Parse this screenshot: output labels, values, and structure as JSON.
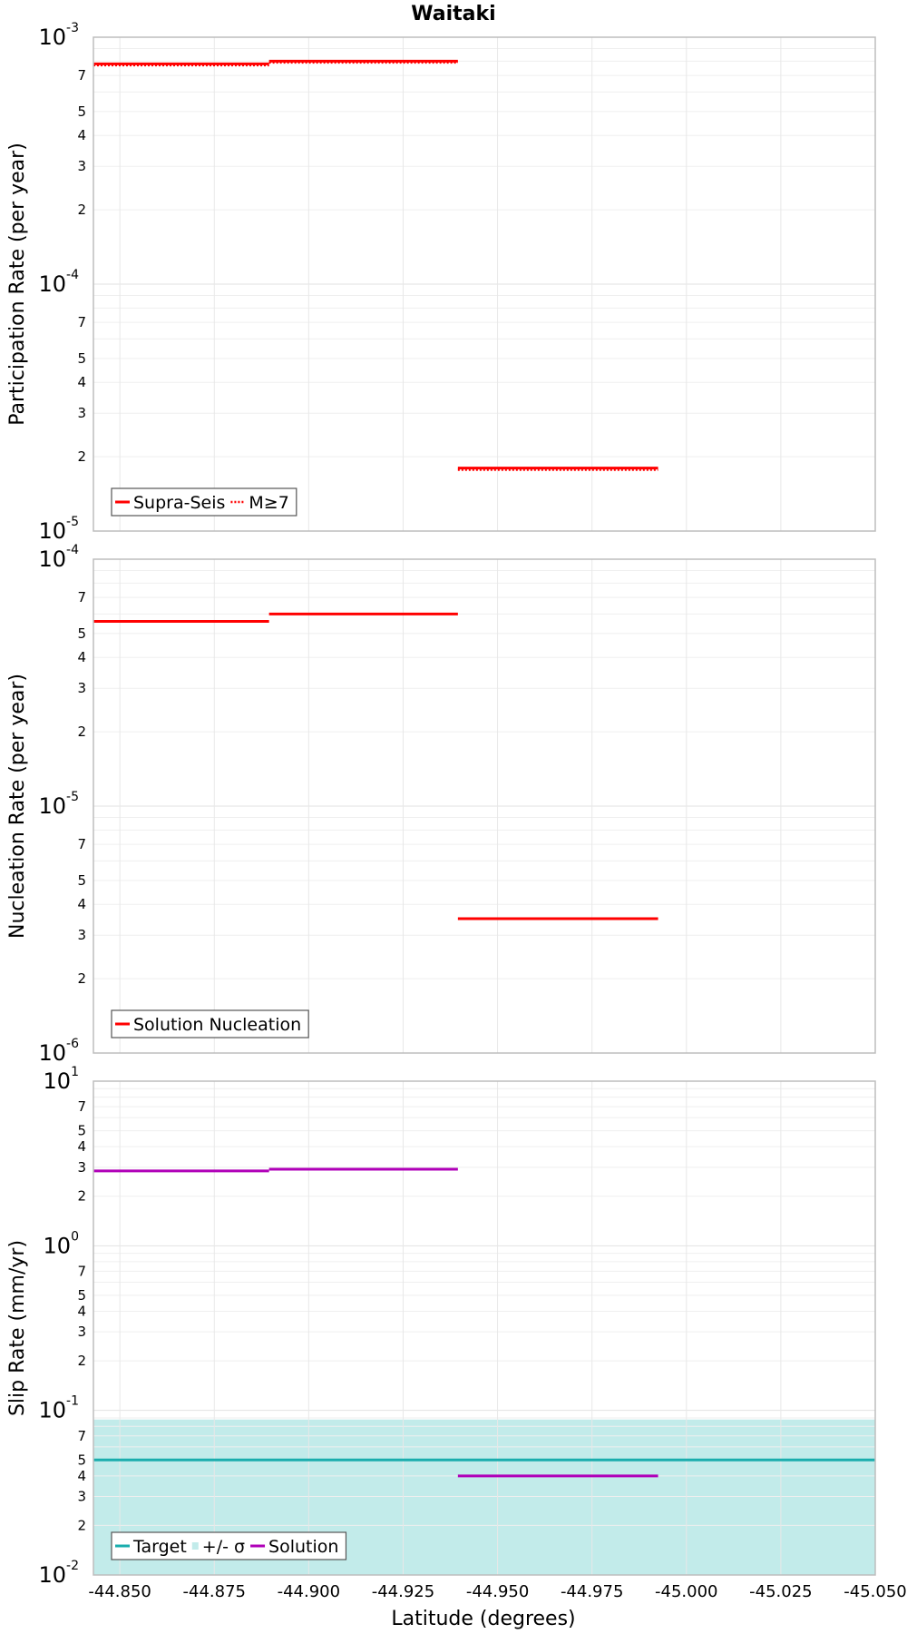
{
  "figure_title": "Waitaki",
  "x_axis": {
    "label": "Latitude (degrees)",
    "ticks": [
      -44.85,
      -44.875,
      -44.9,
      -44.925,
      -44.95,
      -44.975,
      -45.0,
      -45.025,
      -45.05
    ],
    "tick_labels": [
      "-44.850",
      "-44.875",
      "-44.900",
      "-44.925",
      "-44.950",
      "-44.975",
      "-45.000",
      "-45.025",
      "-45.050"
    ]
  },
  "chart_data": [
    {
      "type": "line",
      "ylabel": "Participation Rate (per year)",
      "xlim": [
        -44.843,
        -45.05
      ],
      "ylim": [
        1e-05,
        0.001
      ],
      "log_y": true,
      "grid": true,
      "legend_placement": "bottom-left",
      "y_major_labels": [
        {
          "base": "10",
          "exp": "-5"
        },
        {
          "base": "10",
          "exp": "-4"
        },
        {
          "base": "10",
          "exp": "-3"
        }
      ],
      "series": [
        {
          "name": "Supra-Seis",
          "color": "#ff0000",
          "style": "solid",
          "segments": [
            [
              -44.843,
              -44.8895,
              0.00078
            ],
            [
              -44.8895,
              -44.9395,
              0.0008
            ],
            [
              -44.9395,
              -44.9925,
              1.8e-05
            ]
          ]
        },
        {
          "name": "M≥7",
          "color": "#ff0000",
          "style": "dotted",
          "segments": [
            [
              -44.843,
              -44.8895,
              0.00077
            ],
            [
              -44.8895,
              -44.9395,
              0.00079
            ],
            [
              -44.9395,
              -44.9925,
              1.77e-05
            ]
          ]
        }
      ]
    },
    {
      "type": "line",
      "ylabel": "Nucleation Rate (per year)",
      "xlim": [
        -44.843,
        -45.05
      ],
      "ylim": [
        1e-06,
        0.0001
      ],
      "log_y": true,
      "grid": true,
      "legend_placement": "bottom-left",
      "y_major_labels": [
        {
          "base": "10",
          "exp": "-6"
        },
        {
          "base": "10",
          "exp": "-5"
        },
        {
          "base": "10",
          "exp": "-4"
        }
      ],
      "series": [
        {
          "name": "Solution Nucleation",
          "color": "#ff0000",
          "style": "solid",
          "segments": [
            [
              -44.843,
              -44.8895,
              5.6e-05
            ],
            [
              -44.8895,
              -44.9395,
              6e-05
            ],
            [
              -44.9395,
              -44.9925,
              3.5e-06
            ]
          ]
        }
      ]
    },
    {
      "type": "line",
      "ylabel": "Slip Rate (mm/yr)",
      "xlim": [
        -44.843,
        -45.05
      ],
      "ylim": [
        0.01,
        10
      ],
      "log_y": true,
      "grid": true,
      "legend_placement": "bottom-left",
      "y_major_labels": [
        {
          "base": "10",
          "exp": "-2"
        },
        {
          "base": "10",
          "exp": "-1"
        },
        {
          "base": "10",
          "exp": "0"
        },
        {
          "base": "10",
          "exp": "1"
        }
      ],
      "band": {
        "name": "+/- σ",
        "color": "#c2ebea",
        "low": 0.01,
        "high": 0.088
      },
      "series": [
        {
          "name": "Target",
          "color": "#1aadad",
          "style": "solid",
          "segments": [
            [
              -44.843,
              -45.05,
              0.05
            ]
          ]
        },
        {
          "name": "Solution",
          "color": "#b000b8",
          "style": "solid",
          "segments": [
            [
              -44.843,
              -44.8895,
              2.85
            ],
            [
              -44.8895,
              -44.9395,
              2.92
            ],
            [
              -44.9395,
              -44.9925,
              0.04
            ]
          ]
        }
      ]
    }
  ]
}
